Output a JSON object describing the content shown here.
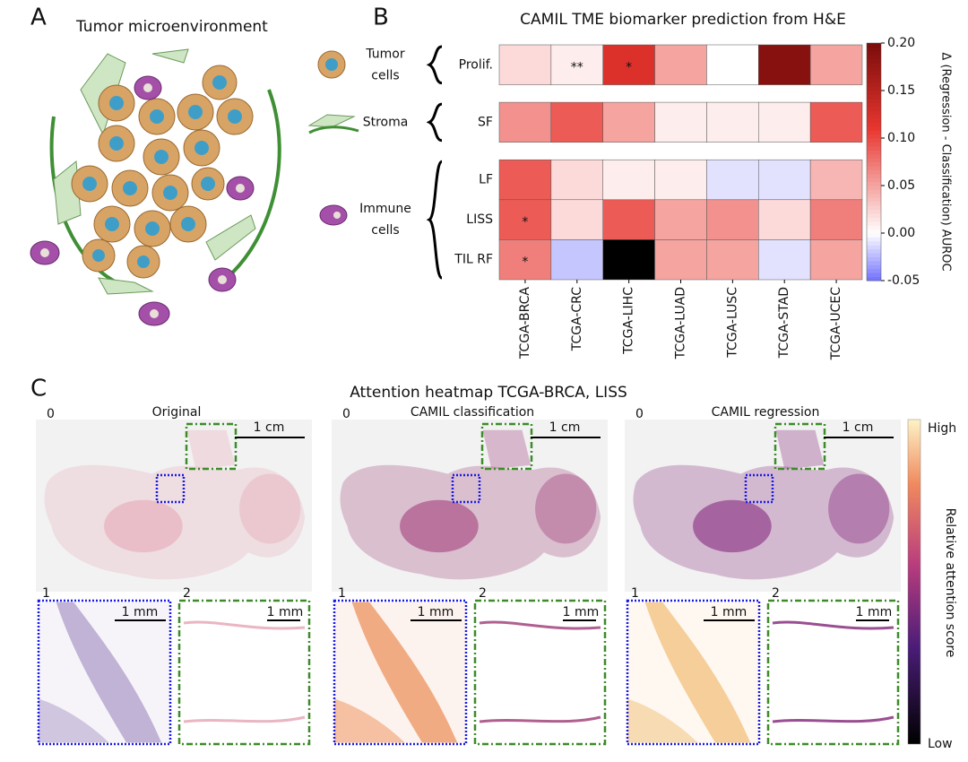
{
  "panel_a": {
    "letter": "A",
    "title": "Tumor microenvironment"
  },
  "panel_b": {
    "letter": "B"
  },
  "chart_data": {
    "type": "heatmap",
    "title": "CAMIL TME biomarker prediction from H&E",
    "categories": [
      "TCGA-BRCA",
      "TCGA-CRC",
      "TCGA-LIHC",
      "TCGA-LUAD",
      "TCGA-LUSC",
      "TCGA-STAD",
      "TCGA-UCEC"
    ],
    "rows": [
      "Prolif.",
      "SF",
      "LF",
      "LISS",
      "TIL RF"
    ],
    "row_groups": [
      {
        "label_lines": [
          "Tumor",
          "cells"
        ],
        "count": 1
      },
      {
        "label_lines": [
          "Stroma"
        ],
        "count": 1
      },
      {
        "label_lines": [
          "Immune",
          "cells"
        ],
        "count": 3
      }
    ],
    "values": [
      [
        0.02,
        0.01,
        0.12,
        0.05,
        0.0,
        0.19,
        0.05
      ],
      [
        0.06,
        0.09,
        0.05,
        0.01,
        0.01,
        0.01,
        0.09
      ],
      [
        0.09,
        0.02,
        0.01,
        0.01,
        -0.01,
        -0.01,
        0.04
      ],
      [
        0.09,
        0.02,
        0.09,
        0.05,
        0.06,
        0.02,
        0.07
      ],
      [
        0.07,
        -0.02,
        null,
        0.05,
        0.05,
        -0.01,
        0.05
      ]
    ],
    "annotations": [
      [
        null,
        "**",
        "*",
        null,
        null,
        null,
        null
      ],
      [
        null,
        null,
        null,
        null,
        null,
        null,
        null
      ],
      [
        null,
        null,
        null,
        null,
        null,
        null,
        null
      ],
      [
        "*",
        null,
        null,
        null,
        null,
        null,
        null
      ],
      [
        "*",
        null,
        null,
        null,
        null,
        null,
        null
      ]
    ],
    "zlim": [
      -0.05,
      0.2
    ],
    "zticks": [
      {
        "value": 0.2,
        "label": "0.20"
      },
      {
        "value": 0.15,
        "label": "0.15"
      },
      {
        "value": 0.1,
        "label": "0.10"
      },
      {
        "value": 0.05,
        "label": "0.05"
      },
      {
        "value": 0,
        "label": "0.00"
      },
      {
        "value": -0.05,
        "label": "-0.05"
      }
    ],
    "colorbar_label": "Δ (Regression - Classification) AUROC",
    "missing_color": "#000000"
  },
  "panel_c": {
    "letter": "C",
    "title": "Attention heatmap TCGA-BRCA, LISS",
    "columns": [
      "Original",
      "CAMIL classification",
      "CAMIL regression"
    ],
    "inset_labels": [
      "0",
      "1",
      "2"
    ],
    "scale_bars": [
      "1 cm",
      "1 mm"
    ],
    "colorbar": {
      "high": "High",
      "low": "Low",
      "label": "Relative attention score"
    }
  }
}
